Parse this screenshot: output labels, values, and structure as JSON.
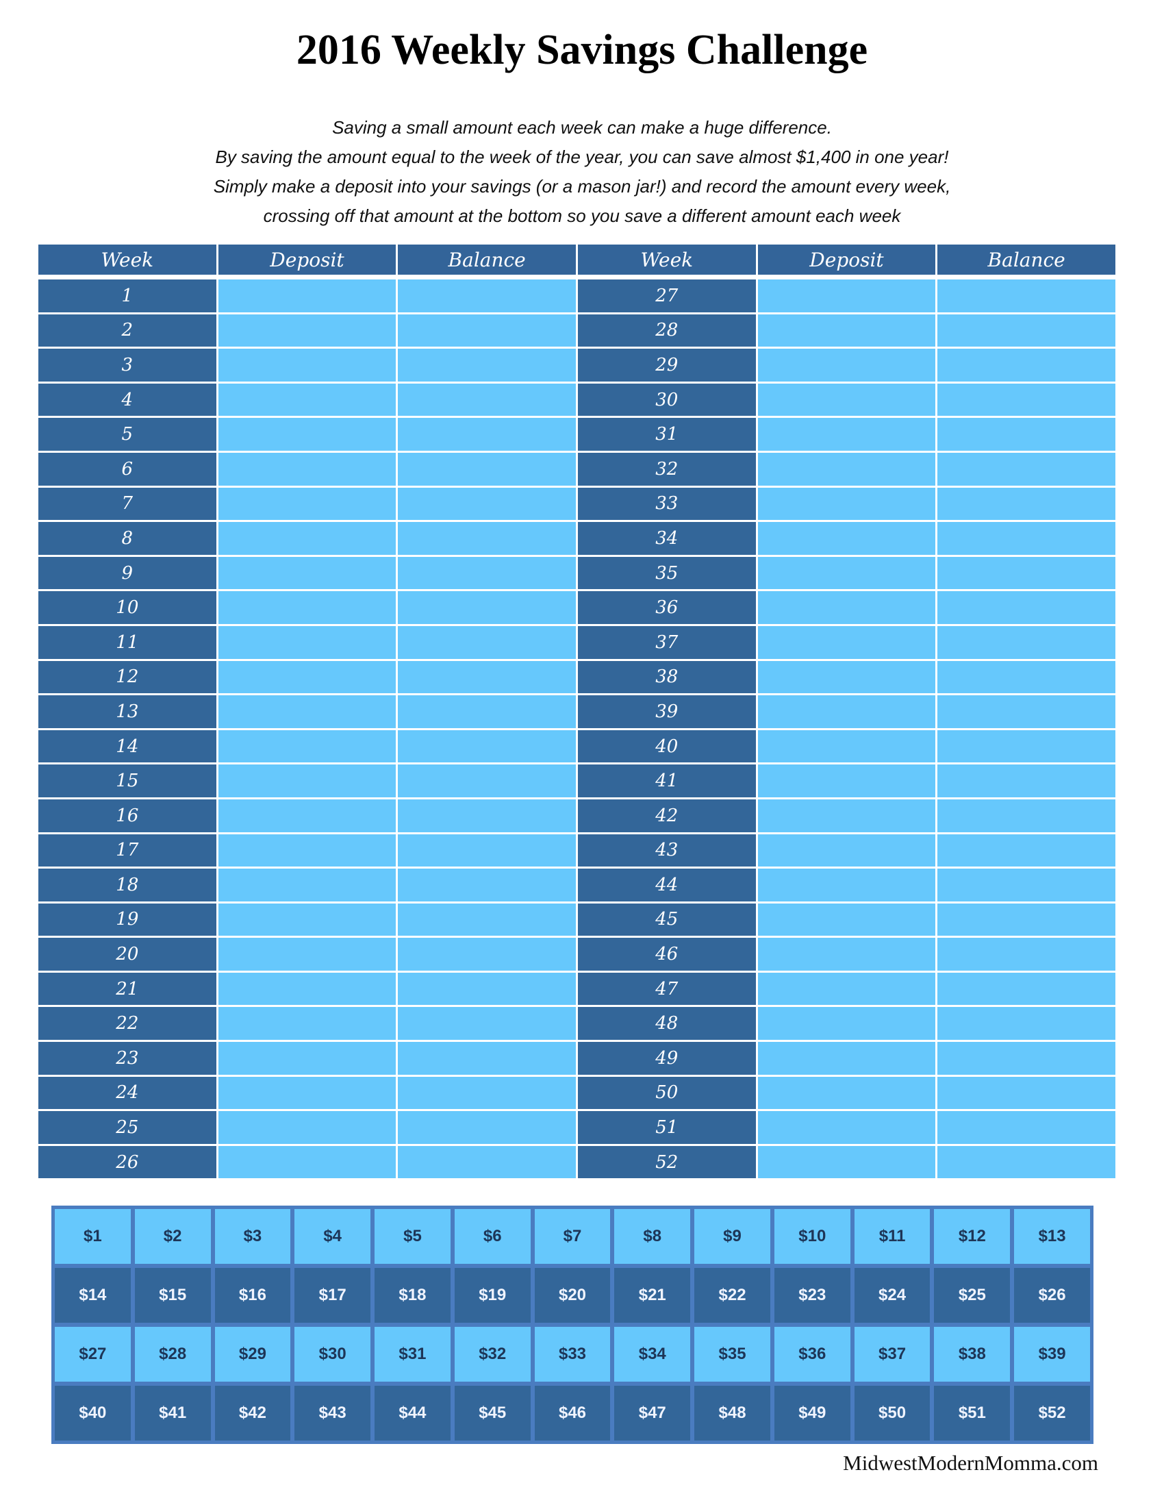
{
  "title": "2016 Weekly Savings Challenge",
  "intro": [
    "Saving a small amount each week can make a huge difference.",
    "By saving the amount equal to the week of the year, you can save almost $1,400 in one year!",
    "Simply make a deposit into your savings (or a mason jar!) and record the amount every week,",
    "crossing off that amount at the bottom so you save a different amount each week"
  ],
  "table": {
    "headers": [
      "Week",
      "Deposit",
      "Balance",
      "Week",
      "Deposit",
      "Balance"
    ],
    "weeks": [
      "1",
      "2",
      "3",
      "4",
      "5",
      "6",
      "7",
      "8",
      "9",
      "10",
      "11",
      "12",
      "13",
      "14",
      "15",
      "16",
      "17",
      "18",
      "19",
      "20",
      "21",
      "22",
      "23",
      "24",
      "25",
      "26",
      "27",
      "28",
      "29",
      "30",
      "31",
      "32",
      "33",
      "34",
      "35",
      "36",
      "37",
      "38",
      "39",
      "40",
      "41",
      "42",
      "43",
      "44",
      "45",
      "46",
      "47",
      "48",
      "49",
      "50",
      "51",
      "52"
    ]
  },
  "amounts": [
    "$1",
    "$2",
    "$3",
    "$4",
    "$5",
    "$6",
    "$7",
    "$8",
    "$9",
    "$10",
    "$11",
    "$12",
    "$13",
    "$14",
    "$15",
    "$16",
    "$17",
    "$18",
    "$19",
    "$20",
    "$21",
    "$22",
    "$23",
    "$24",
    "$25",
    "$26",
    "$27",
    "$28",
    "$29",
    "$30",
    "$31",
    "$32",
    "$33",
    "$34",
    "$35",
    "$36",
    "$37",
    "$38",
    "$39",
    "$40",
    "$41",
    "$42",
    "$43",
    "$44",
    "$45",
    "$46",
    "$47",
    "$48",
    "$49",
    "$50",
    "$51",
    "$52"
  ],
  "footer": "MidwestModernMomma.com"
}
